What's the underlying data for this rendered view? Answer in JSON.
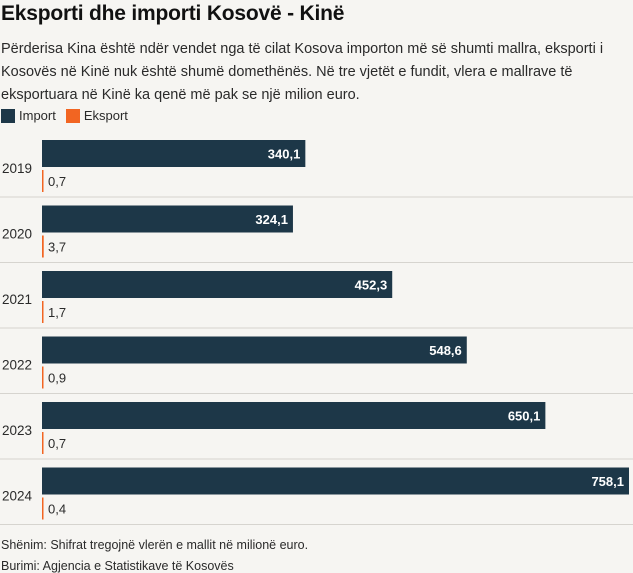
{
  "title": "Eksporti dhe importi Kosovë - Kinë",
  "subtitle": "Përderisa Kina është ndër vendet nga të cilat Kosova importon më së shumti mallra, eksporti i Kosovës në Kinë nuk është shumë domethënës. Në tre vjetët e fundit, vlera e mallrave të eksportuara në Kinë ka qenë më pak se një milion euro.",
  "note": "Shënim: Shifrat tregojnë vlerën e mallit në milionë euro.",
  "source": "Burimi: Agjencia e Statistikave të Kosovës",
  "colors": {
    "import": "#1d3748",
    "export": "#f26522",
    "separator": "#d6d4cf"
  },
  "chart_data": {
    "type": "bar",
    "orientation": "horizontal",
    "categories": [
      "2019",
      "2020",
      "2021",
      "2022",
      "2023",
      "2024"
    ],
    "series": [
      {
        "name": "Import",
        "values": [
          340.1,
          324.1,
          452.3,
          548.6,
          650.1,
          758.1
        ],
        "labels": [
          "340,1",
          "324,1",
          "452,3",
          "548,6",
          "650,1",
          "758,1"
        ]
      },
      {
        "name": "Eksport",
        "values": [
          0.7,
          3.7,
          1.7,
          0.9,
          0.7,
          0.4
        ],
        "labels": [
          "0,7",
          "3,7",
          "1,7",
          "0,9",
          "0,7",
          "0,4"
        ]
      }
    ],
    "xlim": [
      0,
      758.1
    ],
    "legend": "top-left",
    "grid": false
  }
}
